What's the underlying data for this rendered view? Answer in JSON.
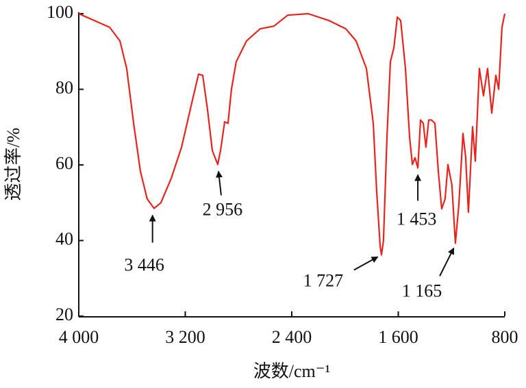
{
  "chart_data": {
    "type": "line",
    "x_label": "波数/cm⁻¹",
    "y_label": "透过率/%",
    "xlim": [
      4000,
      800
    ],
    "ylim": [
      20,
      100
    ],
    "xticks": [
      {
        "value": 4000,
        "label": "4 000"
      },
      {
        "value": 3200,
        "label": "3 200"
      },
      {
        "value": 2400,
        "label": "2 400"
      },
      {
        "value": 1600,
        "label": "1 600"
      },
      800
    ],
    "yticks": [
      20,
      40,
      60,
      80,
      100
    ],
    "series": [
      {
        "color": "#e8231c",
        "x": [
          4000,
          3768,
          3691,
          3640,
          3588,
          3537,
          3486,
          3434,
          3383,
          3305,
          3228,
          3151,
          3100,
          3069,
          3033,
          2997,
          2956,
          2935,
          2904,
          2879,
          2853,
          2817,
          2740,
          2637,
          2534,
          2431,
          2277,
          2122,
          1994,
          1917,
          1839,
          1788,
          1762,
          1736,
          1726,
          1711,
          1685,
          1659,
          1633,
          1607,
          1582,
          1546,
          1515,
          1494,
          1474,
          1453,
          1433,
          1412,
          1392,
          1371,
          1351,
          1325,
          1299,
          1274,
          1248,
          1227,
          1197,
          1171,
          1145,
          1114,
          1094,
          1073,
          1042,
          1021,
          991,
          960,
          929,
          898,
          867,
          846,
          821,
          800
        ],
        "values": [
          100,
          96.4,
          92.8,
          85.5,
          71,
          58.3,
          51,
          48.5,
          50,
          56.5,
          64.7,
          76.4,
          84,
          83.7,
          74.6,
          63.8,
          60.1,
          63.8,
          71.4,
          71,
          80,
          87.3,
          92.8,
          96,
          96.7,
          99.6,
          100,
          98.2,
          96,
          92.8,
          85.5,
          71,
          52.9,
          38.4,
          36.2,
          40,
          67.4,
          87.3,
          91,
          99.1,
          98.2,
          85.5,
          67.4,
          60.1,
          61.9,
          59.2,
          71.9,
          71,
          64.7,
          71.9,
          71.9,
          71,
          58.3,
          48.4,
          51,
          60.1,
          54.7,
          39.3,
          49.3,
          68.3,
          62,
          47.5,
          70.1,
          61,
          85.5,
          78.3,
          85.5,
          73.7,
          83.7,
          80,
          96.4,
          100
        ]
      }
    ],
    "annotations": [
      {
        "text": "3 446",
        "x": 3446,
        "y": 48.5
      },
      {
        "text": "2 956",
        "x": 2956,
        "y": 60.1
      },
      {
        "text": "1 727",
        "x": 1727,
        "y": 36.2
      },
      {
        "text": "1 453",
        "x": 1453,
        "y": 59.2
      },
      {
        "text": "1 165",
        "x": 1165,
        "y": 39.3
      }
    ]
  }
}
